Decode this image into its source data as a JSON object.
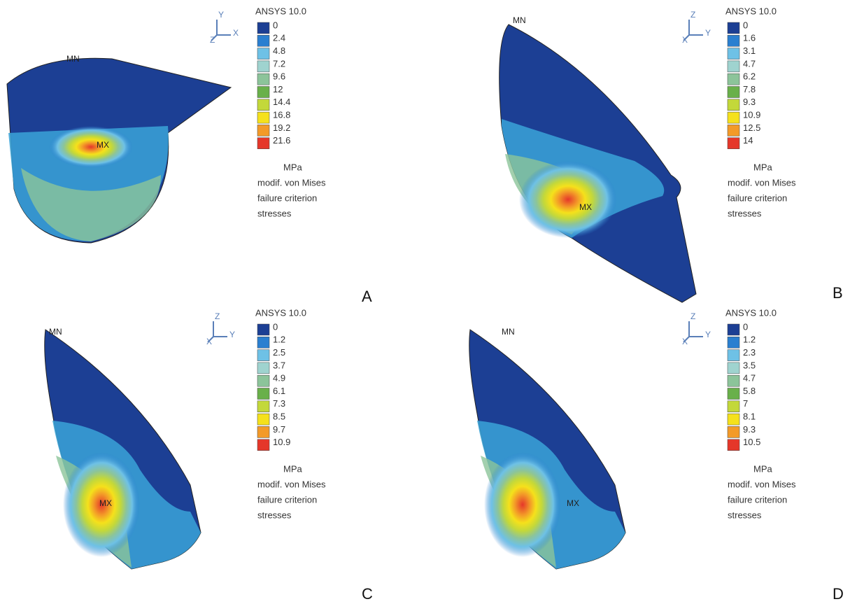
{
  "panels": [
    {
      "letter": "A",
      "software": "ANSYS 10.0",
      "triad": [
        "Y",
        "Z",
        "X"
      ],
      "legend": [
        "0",
        "2.4",
        "4.8",
        "7.2",
        "9.6",
        "12",
        "14.4",
        "16.8",
        "19.2",
        "21.6"
      ],
      "unit": "MPa",
      "description": [
        "modif. von Mises",
        "failure criterion",
        "stresses"
      ],
      "min_label": "MN",
      "max_label": "MX"
    },
    {
      "letter": "B",
      "software": "ANSYS 10.0",
      "triad": [
        "Z",
        "X",
        "Y"
      ],
      "legend": [
        "0",
        "1.6",
        "3.1",
        "4.7",
        "6.2",
        "7.8",
        "9.3",
        "10.9",
        "12.5",
        "14"
      ],
      "unit": "MPa",
      "description": [
        "modif. von Mises",
        "failure criterion",
        "stresses"
      ],
      "min_label": "MN",
      "max_label": "MX"
    },
    {
      "letter": "C",
      "software": "ANSYS 10.0",
      "triad": [
        "Z",
        "X",
        "Y"
      ],
      "legend": [
        "0",
        "1.2",
        "2.5",
        "3.7",
        "4.9",
        "6.1",
        "7.3",
        "8.5",
        "9.7",
        "10.9"
      ],
      "unit": "MPa",
      "description": [
        "modif. von Mises",
        "failure criterion",
        "stresses"
      ],
      "min_label": "MN",
      "max_label": "MX"
    },
    {
      "letter": "D",
      "software": "ANSYS 10.0",
      "triad": [
        "Z",
        "X",
        "Y"
      ],
      "legend": [
        "0",
        "1.2",
        "2.3",
        "3.5",
        "4.7",
        "5.8",
        "7",
        "8.1",
        "9.3",
        "10.5"
      ],
      "unit": "MPa",
      "description": [
        "modif. von Mises",
        "failure criterion",
        "stresses"
      ],
      "min_label": "MN",
      "max_label": "MX"
    }
  ]
}
